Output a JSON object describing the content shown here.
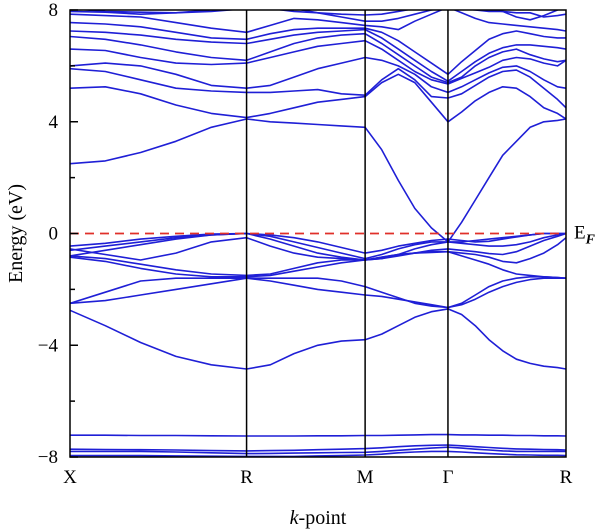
{
  "chart_data": {
    "type": "line",
    "xlabel": "k-point",
    "xlabel_italic_prefix": "k",
    "xlabel_suffix": "-point",
    "ylabel": "Energy (eV)",
    "ylim": [
      -8,
      8
    ],
    "yticks": [
      8,
      4,
      0,
      -4,
      -8
    ],
    "ytick_labels": [
      "8",
      "4",
      "0",
      "−4",
      "−8"
    ],
    "y_minor_ticks": [
      6,
      2,
      -2,
      -6
    ],
    "high_symmetry_points": [
      {
        "label": "X",
        "k": 0.0
      },
      {
        "label": "R",
        "k": 0.356
      },
      {
        "label": "M",
        "k": 0.595
      },
      {
        "label": "Γ",
        "k": 0.762
      },
      {
        "label": "R",
        "k": 1.0
      }
    ],
    "fermi_level": {
      "energy": 0,
      "label": "E",
      "label_sub": "F"
    },
    "colors": {
      "bands": "#1f1fd6",
      "fermi": "#e0302a",
      "axes": "#000000"
    },
    "k_samples": [
      0.0,
      0.0712,
      0.1424,
      0.2136,
      0.2848,
      0.356,
      0.4038,
      0.4516,
      0.4994,
      0.5472,
      0.595,
      0.6284,
      0.6618,
      0.6952,
      0.7286,
      0.762,
      0.7896,
      0.8172,
      0.8448,
      0.8724,
      0.9,
      0.9276,
      0.9552,
      0.9828,
      1.0
    ],
    "series": [
      {
        "values": [
          -7.95,
          -7.95,
          -7.95,
          -7.96,
          -7.97,
          -7.98,
          -7.98,
          -7.98,
          -7.96,
          -7.95,
          -7.93,
          -7.9,
          -7.85,
          -7.82,
          -7.8,
          -7.8,
          -7.82,
          -7.85,
          -7.88,
          -7.9,
          -7.92,
          -7.93,
          -7.94,
          -7.94,
          -7.95
        ]
      },
      {
        "values": [
          -7.8,
          -7.8,
          -7.8,
          -7.82,
          -7.85,
          -7.88,
          -7.87,
          -7.86,
          -7.85,
          -7.84,
          -7.83,
          -7.8,
          -7.76,
          -7.72,
          -7.68,
          -7.65,
          -7.68,
          -7.72,
          -7.75,
          -7.78,
          -7.8,
          -7.8,
          -7.8,
          -7.8,
          -7.8
        ]
      },
      {
        "values": [
          -7.72,
          -7.73,
          -7.74,
          -7.75,
          -7.77,
          -7.78,
          -7.77,
          -7.76,
          -7.74,
          -7.72,
          -7.7,
          -7.67,
          -7.63,
          -7.6,
          -7.58,
          -7.57,
          -7.6,
          -7.63,
          -7.66,
          -7.69,
          -7.71,
          -7.72,
          -7.73,
          -7.74,
          -7.75
        ]
      },
      {
        "values": [
          -7.22,
          -7.22,
          -7.23,
          -7.23,
          -7.24,
          -7.25,
          -7.25,
          -7.25,
          -7.24,
          -7.24,
          -7.23,
          -7.23,
          -7.22,
          -7.21,
          -7.2,
          -7.2,
          -7.21,
          -7.21,
          -7.22,
          -7.22,
          -7.23,
          -7.23,
          -7.24,
          -7.24,
          -7.25
        ]
      },
      {
        "values": [
          -2.75,
          -3.3,
          -3.9,
          -4.4,
          -4.7,
          -4.85,
          -4.7,
          -4.3,
          -4.0,
          -3.85,
          -3.8,
          -3.6,
          -3.3,
          -3.0,
          -2.8,
          -2.7,
          -2.9,
          -3.3,
          -3.8,
          -4.2,
          -4.5,
          -4.65,
          -4.75,
          -4.8,
          -4.85
        ]
      },
      {
        "values": [
          -2.5,
          -2.4,
          -2.2,
          -2.0,
          -1.8,
          -1.6,
          -1.7,
          -1.85,
          -2.0,
          -2.1,
          -2.2,
          -2.25,
          -2.35,
          -2.45,
          -2.55,
          -2.65,
          -2.55,
          -2.35,
          -2.1,
          -1.9,
          -1.75,
          -1.65,
          -1.6,
          -1.6,
          -1.6
        ]
      },
      {
        "values": [
          -2.5,
          -2.1,
          -1.7,
          -1.6,
          -1.6,
          -1.6,
          -1.6,
          -1.6,
          -1.6,
          -1.7,
          -1.9,
          -2.1,
          -2.3,
          -2.5,
          -2.6,
          -2.65,
          -2.5,
          -2.2,
          -1.9,
          -1.7,
          -1.6,
          -1.55,
          -1.55,
          -1.58,
          -1.6
        ]
      },
      {
        "values": [
          -0.85,
          -1.0,
          -1.25,
          -1.45,
          -1.55,
          -1.55,
          -1.5,
          -1.35,
          -1.2,
          -1.05,
          -0.95,
          -0.85,
          -0.75,
          -0.7,
          -0.65,
          -0.65,
          -0.8,
          -0.95,
          -1.1,
          -1.3,
          -1.45,
          -1.5,
          -1.55,
          -1.58,
          -1.6
        ]
      },
      {
        "values": [
          -0.8,
          -0.9,
          -1.1,
          -1.3,
          -1.45,
          -1.5,
          -1.45,
          -1.25,
          -1.05,
          -0.95,
          -0.95,
          -0.85,
          -0.75,
          -0.7,
          -0.68,
          -0.65,
          -0.7,
          -0.75,
          -0.85,
          -1.0,
          -1.05,
          -0.9,
          -0.7,
          -0.4,
          -0.15
        ]
      },
      {
        "values": [
          -0.55,
          -0.75,
          -0.95,
          -0.7,
          -0.3,
          -0.15,
          -0.45,
          -0.7,
          -0.85,
          -0.9,
          -0.95,
          -0.9,
          -0.8,
          -0.7,
          -0.6,
          -0.55,
          -0.6,
          -0.65,
          -0.72,
          -0.75,
          -0.65,
          -0.45,
          -0.25,
          -0.1,
          0.0
        ]
      },
      {
        "values": [
          -0.8,
          -0.6,
          -0.4,
          -0.2,
          -0.05,
          0.0,
          -0.2,
          -0.45,
          -0.7,
          -0.85,
          -0.95,
          -0.9,
          -0.75,
          -0.55,
          -0.4,
          -0.3,
          -0.35,
          -0.4,
          -0.45,
          -0.45,
          -0.4,
          -0.3,
          -0.15,
          -0.05,
          0.0
        ]
      },
      {
        "values": [
          -0.6,
          -0.45,
          -0.3,
          -0.15,
          -0.05,
          0.0,
          -0.1,
          -0.3,
          -0.5,
          -0.7,
          -0.9,
          -0.75,
          -0.55,
          -0.4,
          -0.3,
          -0.3,
          -0.3,
          -0.25,
          -0.2,
          -0.15,
          -0.1,
          -0.05,
          0.0,
          0.0,
          0.0
        ]
      },
      {
        "values": [
          -0.45,
          -0.35,
          -0.2,
          -0.1,
          -0.02,
          0.0,
          -0.05,
          -0.15,
          -0.3,
          -0.5,
          -0.7,
          -0.6,
          -0.45,
          -0.35,
          -0.25,
          -0.2,
          -0.25,
          -0.3,
          -0.28,
          -0.2,
          -0.12,
          -0.05,
          0.0,
          0.0,
          0.0
        ]
      },
      {
        "values": [
          2.5,
          2.6,
          2.9,
          3.3,
          3.8,
          4.1,
          4.0,
          3.95,
          3.9,
          3.85,
          3.8,
          3.0,
          1.9,
          0.9,
          0.2,
          -0.3,
          0.4,
          1.2,
          2.0,
          2.8,
          3.3,
          3.8,
          4.0,
          4.05,
          4.1
        ]
      },
      {
        "values": [
          5.2,
          5.25,
          5.0,
          4.6,
          4.3,
          4.15,
          4.3,
          4.5,
          4.7,
          4.8,
          4.9,
          5.4,
          5.7,
          5.4,
          4.7,
          4.0,
          4.35,
          4.75,
          5.05,
          5.25,
          5.2,
          4.9,
          4.5,
          4.3,
          4.1
        ]
      },
      {
        "values": [
          5.9,
          5.8,
          5.5,
          5.2,
          5.1,
          5.05,
          5.05,
          5.1,
          5.15,
          5.0,
          4.95,
          5.5,
          5.9,
          5.5,
          4.9,
          4.85,
          5.0,
          5.3,
          5.6,
          5.8,
          5.85,
          5.6,
          5.2,
          4.8,
          4.5
        ]
      },
      {
        "values": [
          6.0,
          6.1,
          6.0,
          5.7,
          5.3,
          5.2,
          5.3,
          5.6,
          5.9,
          6.1,
          6.3,
          6.2,
          6.0,
          5.7,
          5.25,
          5.05,
          5.25,
          5.5,
          5.75,
          5.95,
          6.0,
          5.8,
          5.5,
          5.25,
          5.2
        ]
      },
      {
        "values": [
          6.6,
          6.55,
          6.3,
          6.1,
          6.05,
          6.1,
          6.3,
          6.5,
          6.7,
          6.8,
          6.9,
          6.6,
          6.2,
          5.8,
          5.5,
          5.35,
          5.55,
          5.75,
          5.95,
          6.2,
          6.3,
          6.25,
          6.1,
          6.0,
          6.2
        ]
      },
      {
        "values": [
          7.05,
          6.95,
          6.75,
          6.5,
          6.3,
          6.2,
          6.5,
          6.8,
          7.0,
          7.1,
          7.15,
          6.8,
          6.4,
          6.0,
          5.6,
          5.4,
          5.6,
          6.0,
          6.3,
          6.5,
          6.6,
          6.4,
          6.25,
          6.15,
          6.2
        ]
      },
      {
        "values": [
          7.25,
          7.2,
          7.1,
          6.95,
          6.85,
          6.8,
          6.95,
          7.1,
          7.2,
          7.25,
          7.3,
          7.0,
          6.6,
          6.2,
          5.8,
          5.45,
          5.8,
          6.15,
          6.45,
          6.65,
          6.75,
          6.75,
          6.7,
          6.65,
          6.6
        ]
      },
      {
        "values": [
          7.55,
          7.5,
          7.4,
          7.2,
          7.0,
          6.95,
          7.15,
          7.3,
          7.35,
          7.35,
          7.35,
          7.2,
          6.9,
          6.5,
          6.1,
          5.7,
          6.15,
          6.55,
          6.95,
          7.15,
          7.25,
          7.15,
          7.05,
          7.0,
          7.0
        ]
      },
      {
        "values": [
          7.85,
          7.8,
          7.75,
          7.55,
          7.35,
          7.2,
          7.45,
          7.7,
          7.65,
          7.55,
          7.45,
          7.4,
          7.3,
          7.6,
          7.85,
          8.1,
          7.9,
          7.7,
          7.55,
          7.5,
          7.45,
          7.4,
          7.35,
          7.3,
          7.25
        ]
      },
      {
        "values": [
          7.95,
          7.92,
          7.85,
          7.9,
          8.0,
          8.1,
          8.1,
          8.05,
          7.9,
          7.75,
          7.6,
          7.6,
          7.7,
          7.85,
          8.0,
          8.1,
          8.05,
          8.0,
          7.95,
          7.95,
          7.9,
          7.9,
          7.75,
          7.8,
          7.85
        ]
      },
      {
        "values": [
          8.05,
          7.95,
          7.92,
          7.9,
          7.95,
          8.05,
          8.05,
          7.95,
          7.9,
          7.85,
          7.82,
          7.85,
          7.95,
          8.05,
          8.1,
          8.15,
          8.1,
          8.05,
          8.0,
          7.95,
          7.75,
          7.65,
          7.8,
          8.0,
          8.1
        ]
      }
    ]
  }
}
